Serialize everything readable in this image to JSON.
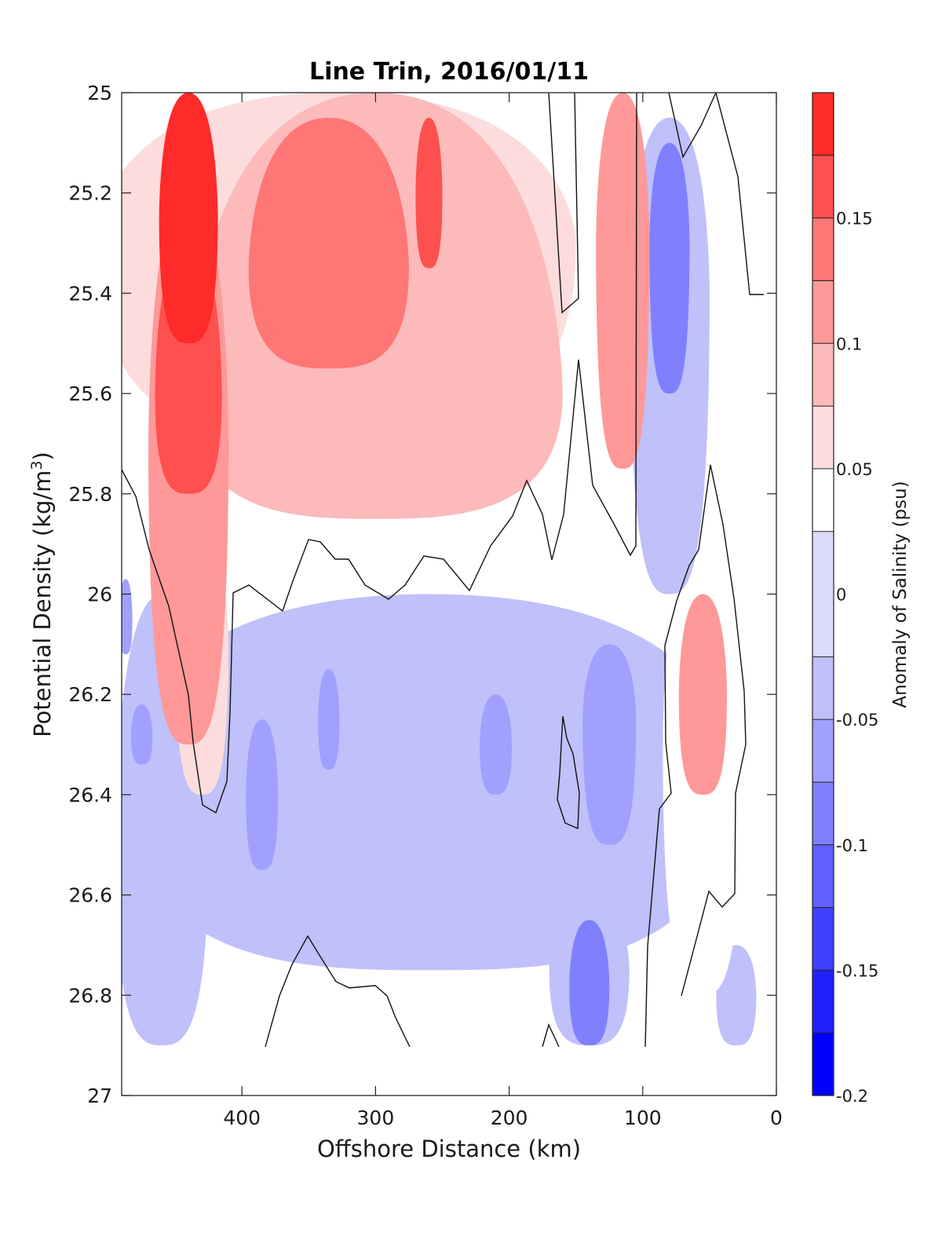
{
  "chart_data": {
    "type": "heatmap",
    "title": "Line Trin, 2016/01/11",
    "xlabel": "Offshore Distance (km)",
    "ylabel_main": "Potential Density (kg/m",
    "ylabel_sup": "3",
    "ylabel_close": ")",
    "xlim": [
      490,
      0
    ],
    "ylim": [
      25,
      27
    ],
    "x_ticks": [
      400,
      300,
      200,
      100,
      0
    ],
    "y_ticks": [
      25,
      25.2,
      25.4,
      25.6,
      25.8,
      26,
      26.2,
      26.4,
      26.6,
      26.8,
      27
    ],
    "colorbar": {
      "label": "Anomaly of Salinity (psu)",
      "limits": [
        -0.2,
        0.2
      ],
      "tick_values": [
        0.15,
        0.1,
        0.05,
        0,
        -0.05,
        -0.1,
        -0.15,
        -0.2
      ],
      "tick_labels": [
        "0.15",
        "0.1",
        "0.05",
        "0",
        "-0.05",
        "-0.1",
        "-0.15",
        "-0.2"
      ],
      "levels": [
        -0.2,
        -0.175,
        -0.15,
        -0.125,
        -0.1,
        -0.075,
        -0.05,
        -0.025,
        0.025,
        0.05,
        0.075,
        0.1,
        0.125,
        0.15,
        0.175,
        0.2
      ],
      "colors": [
        "#0000ff",
        "#2020ff",
        "#4040ff",
        "#6060ff",
        "#8080ff",
        "#a0a0ff",
        "#c0c0fa",
        "#dcdcfa",
        "#ffffff",
        "#fcdcdc",
        "#fcbaba",
        "#ff9898",
        "#ff7676",
        "#ff5050",
        "#ff2a2a",
        "#ff0000"
      ]
    },
    "contour_line_levels": [
      0
    ],
    "data_region": {
      "x_range_km": [
        490,
        10
      ],
      "density_range": [
        25,
        26.9
      ]
    },
    "anomaly_features": [
      {
        "label": "core near 440 km",
        "center": [
          440,
          25.25
        ],
        "x_halfwidth_km": 22,
        "y_extent": [
          25.0,
          25.5
        ],
        "value": 0.2
      },
      {
        "label": "core near 440 km",
        "center": [
          440,
          25.6
        ],
        "x_halfwidth_km": 25,
        "y_extent": [
          25.3,
          25.8
        ],
        "value": 0.17
      },
      {
        "label": "core near 440 km",
        "center": [
          440,
          25.7
        ],
        "x_halfwidth_km": 30,
        "y_extent": [
          25.2,
          26.3
        ],
        "value": 0.12
      },
      {
        "label": "core near 440 km",
        "center": [
          430,
          26.1
        ],
        "x_halfwidth_km": 20,
        "y_extent": [
          25.9,
          26.4
        ],
        "value": 0.05
      },
      {
        "label": "core 290-340 km",
        "center": [
          335,
          25.35
        ],
        "x_halfwidth_km": 60,
        "y_extent": [
          25.05,
          25.55
        ],
        "value": 0.14
      },
      {
        "label": "core near 260 km",
        "center": [
          260,
          25.2
        ],
        "x_halfwidth_km": 10,
        "y_extent": [
          25.05,
          25.35
        ],
        "value": 0.16
      },
      {
        "label": "broad positive band",
        "center": [
          300,
          25.6
        ],
        "x_halfwidth_km": 140,
        "y_extent": [
          25.0,
          25.85
        ],
        "value": 0.08
      },
      {
        "label": "upper band 470-180 km",
        "center": [
          330,
          25.3
        ],
        "x_halfwidth_km": 180,
        "y_extent": [
          25.0,
          25.7
        ],
        "value": 0.06
      },
      {
        "label": "feature near 115 km",
        "center": [
          115,
          25.3
        ],
        "x_halfwidth_km": 20,
        "y_extent": [
          25.0,
          25.75
        ],
        "value": 0.1
      },
      {
        "label": "feature near 50 km",
        "center": [
          55,
          26.2
        ],
        "x_halfwidth_km": 18,
        "y_extent": [
          26.0,
          26.4
        ],
        "value": 0.1
      },
      {
        "label": "feature near 50 km",
        "center": [
          55,
          26.3
        ],
        "x_halfwidth_km": 30,
        "y_extent": [
          25.9,
          26.8
        ],
        "value": 0.04
      },
      {
        "label": "surface patch near 20 km",
        "center": [
          20,
          25.05
        ],
        "x_halfwidth_km": 15,
        "y_extent": [
          25.0,
          25.2
        ],
        "value": 0.04
      },
      {
        "label": "negative band near 80 km",
        "center": [
          80,
          25.3
        ],
        "x_halfwidth_km": 15,
        "y_extent": [
          25.1,
          25.6
        ],
        "value": -0.1
      },
      {
        "label": "negative band near 80 km",
        "center": [
          80,
          25.4
        ],
        "x_halfwidth_km": 30,
        "y_extent": [
          25.05,
          26.0
        ],
        "value": -0.05
      },
      {
        "label": "deep negative layer",
        "center": [
          260,
          26.35
        ],
        "x_halfwidth_km": 230,
        "y_extent": [
          26.0,
          26.75
        ],
        "value": -0.035
      },
      {
        "label": "deep negative layer",
        "center": [
          460,
          26.5
        ],
        "x_halfwidth_km": 35,
        "y_extent": [
          26.0,
          26.9
        ],
        "value": -0.035
      },
      {
        "label": "patch near 125 km",
        "center": [
          125,
          26.25
        ],
        "x_halfwidth_km": 20,
        "y_extent": [
          26.1,
          26.5
        ],
        "value": -0.07
      },
      {
        "label": "patch near 30 km",
        "center": [
          30,
          26.8
        ],
        "x_halfwidth_km": 15,
        "y_extent": [
          26.7,
          26.9
        ],
        "value": -0.035
      },
      {
        "label": "deep patch near 140 km",
        "center": [
          140,
          26.78
        ],
        "x_halfwidth_km": 15,
        "y_extent": [
          26.65,
          26.9
        ],
        "value": -0.08
      },
      {
        "label": "deep layer near 140 km",
        "center": [
          140,
          26.75
        ],
        "x_halfwidth_km": 30,
        "y_extent": [
          26.6,
          26.9
        ],
        "value": -0.035
      },
      {
        "label": "small patch near 380 km",
        "center": [
          385,
          26.4
        ],
        "x_halfwidth_km": 12,
        "y_extent": [
          26.25,
          26.55
        ],
        "value": -0.07
      },
      {
        "label": "small patch near 330 km",
        "center": [
          335,
          26.25
        ],
        "x_halfwidth_km": 8,
        "y_extent": [
          26.15,
          26.35
        ],
        "value": -0.07
      },
      {
        "label": "small patch near 210 km",
        "center": [
          210,
          26.3
        ],
        "x_halfwidth_km": 12,
        "y_extent": [
          26.2,
          26.4
        ],
        "value": -0.07
      },
      {
        "label": "small patch near 475 km",
        "center": [
          475,
          26.28
        ],
        "x_halfwidth_km": 8,
        "y_extent": [
          26.22,
          26.34
        ],
        "value": -0.07
      },
      {
        "label": "small patch near 485 km",
        "center": [
          487,
          26.05
        ],
        "x_halfwidth_km": 5,
        "y_extent": [
          25.97,
          26.12
        ],
        "value": -0.06
      }
    ]
  }
}
